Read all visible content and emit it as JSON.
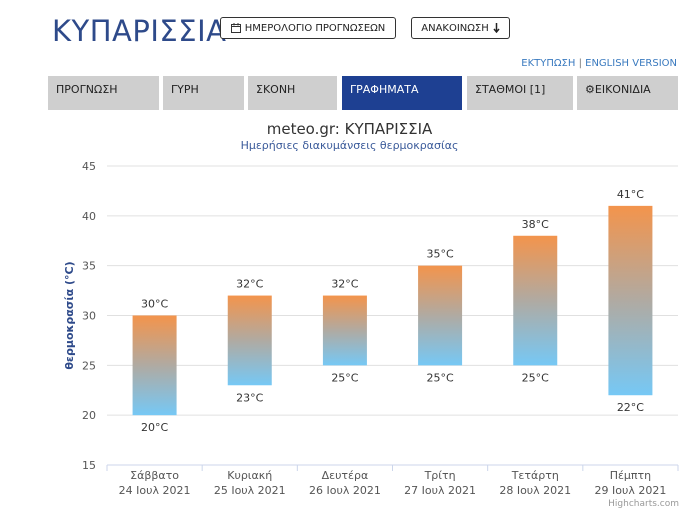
{
  "header": {
    "title": "ΚΥΠΑΡΙΣΣΙΑ",
    "calendar_button": "ΗΜΕΡΟΛΟΓΙΟ ΠΡΟΓΝΩΣΕΩΝ",
    "announcement_button": "ΑΝΑΚΟΙΝΩΣΗ",
    "print_link": "ΕΚΤΥΠΩΣΗ",
    "separator": "|",
    "english_link": "ENGLISH VERSION"
  },
  "tabs": [
    {
      "label": "ΠΡΟΓΝΩΣΗ",
      "active": false
    },
    {
      "label": "ΓΥΡΗ",
      "active": false
    },
    {
      "label": "ΣΚΟΝΗ",
      "active": false
    },
    {
      "label": "ΓΡΑΦΗΜΑΤΑ",
      "active": true
    },
    {
      "label": "ΣΤΑΘΜΟΙ [1]",
      "active": false
    },
    {
      "label": "ΕΙΚΟΝΙΔΙΑ",
      "active": false
    }
  ],
  "icons": {
    "calendar": "calendar-icon",
    "dropdown": "arrow-down-icon",
    "gear": "gear-icon"
  },
  "colors": {
    "brand": "#2e4a8a",
    "active_tab": "#1e4092",
    "tab": "#cfcfcf",
    "bar_top": "#f3944c",
    "bar_bottom": "#76c8f5"
  },
  "chart_data": {
    "type": "bar",
    "title": "meteo.gr: ΚΥΠΑΡΙΣΣΙΑ",
    "subtitle": "Ημερήσιες διακυμάνσεις θερμοκρασίας",
    "ylabel": "θερμοκρασία (°C)",
    "ylim": [
      15,
      45
    ],
    "yticks": [
      15,
      20,
      25,
      30,
      35,
      40,
      45
    ],
    "grid": true,
    "categories": [
      {
        "day": "Σάββατο",
        "date": "24 Ιουλ 2021"
      },
      {
        "day": "Κυριακή",
        "date": "25 Ιουλ 2021"
      },
      {
        "day": "Δευτέρα",
        "date": "26 Ιουλ 2021"
      },
      {
        "day": "Τρίτη",
        "date": "27 Ιουλ 2021"
      },
      {
        "day": "Τετάρτη",
        "date": "28 Ιουλ 2021"
      },
      {
        "day": "Πέμπτη",
        "date": "29 Ιουλ 2021"
      }
    ],
    "min": [
      20,
      23,
      25,
      25,
      25,
      22
    ],
    "max": [
      30,
      32,
      32,
      35,
      38,
      41
    ],
    "unit": "°C",
    "credit": "Highcharts.com"
  }
}
